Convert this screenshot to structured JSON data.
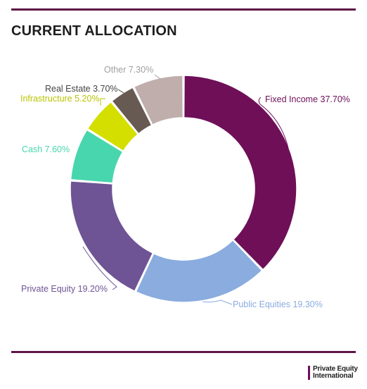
{
  "title": "CURRENT ALLOCATION",
  "brand": {
    "line1": "Private Equity",
    "line2": "International",
    "bar_color": "#6e0f58"
  },
  "chart_data": {
    "type": "pie",
    "donut": true,
    "categories": [
      "Fixed Income",
      "Public Equities",
      "Private Equity",
      "Cash",
      "Infrastructure",
      "Real Estate",
      "Other"
    ],
    "values": [
      37.7,
      19.3,
      19.2,
      7.6,
      5.2,
      3.7,
      7.3
    ],
    "labels": [
      "Fixed Income 37.70%",
      "Public Equities 19.30%",
      "Private Equity 19.20%",
      "Cash 7.60%",
      "Infrastructure 5.20%",
      "Real Estate 3.70%",
      "Other 7.30%"
    ],
    "colors": [
      "#6e0f58",
      "#8aacdf",
      "#6e5494",
      "#47d6ad",
      "#d4df00",
      "#675a52",
      "#bfaeab"
    ],
    "label_colors": [
      "#6e0f58",
      "#8aacdf",
      "#6e5494",
      "#47d6ad",
      "#b9c400",
      "#444444",
      "#9f9f9f"
    ]
  }
}
